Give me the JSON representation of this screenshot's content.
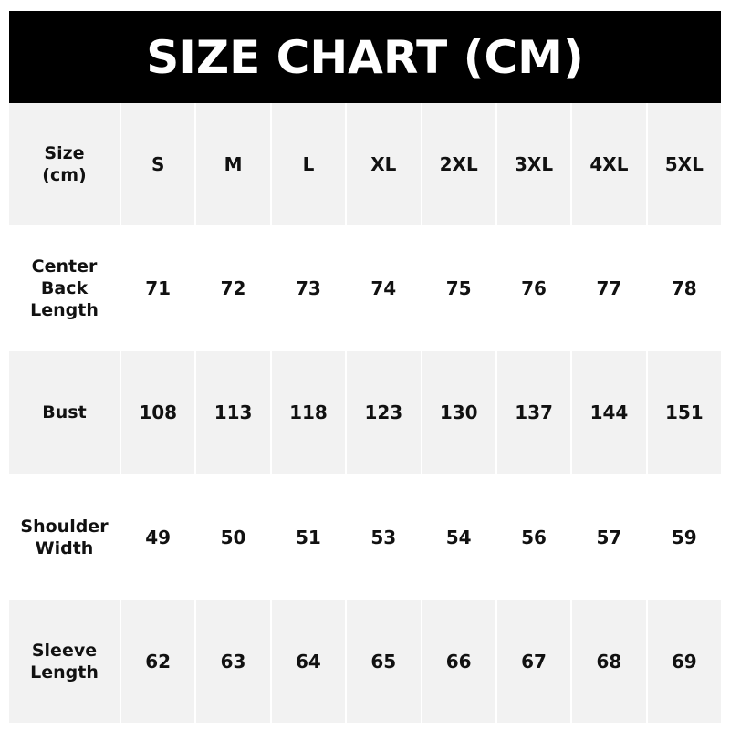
{
  "title": "SIZE CHART (CM)",
  "table": {
    "header": {
      "label": "Size\n(cm)",
      "sizes": [
        "S",
        "M",
        "L",
        "XL",
        "2XL",
        "3XL",
        "4XL",
        "5XL"
      ]
    },
    "rows": [
      {
        "label": "Center\nBack\nLength",
        "values": [
          "71",
          "72",
          "73",
          "74",
          "75",
          "76",
          "77",
          "78"
        ]
      },
      {
        "label": "Bust",
        "values": [
          "108",
          "113",
          "118",
          "123",
          "130",
          "137",
          "144",
          "151"
        ]
      },
      {
        "label": "Shoulder\nWidth",
        "values": [
          "49",
          "50",
          "51",
          "53",
          "54",
          "56",
          "57",
          "59"
        ]
      },
      {
        "label": "Sleeve\nLength",
        "values": [
          "62",
          "63",
          "64",
          "65",
          "66",
          "67",
          "68",
          "69"
        ]
      }
    ]
  },
  "colors": {
    "header_bg": "#000000",
    "row_gray": "#f2f2f2"
  }
}
